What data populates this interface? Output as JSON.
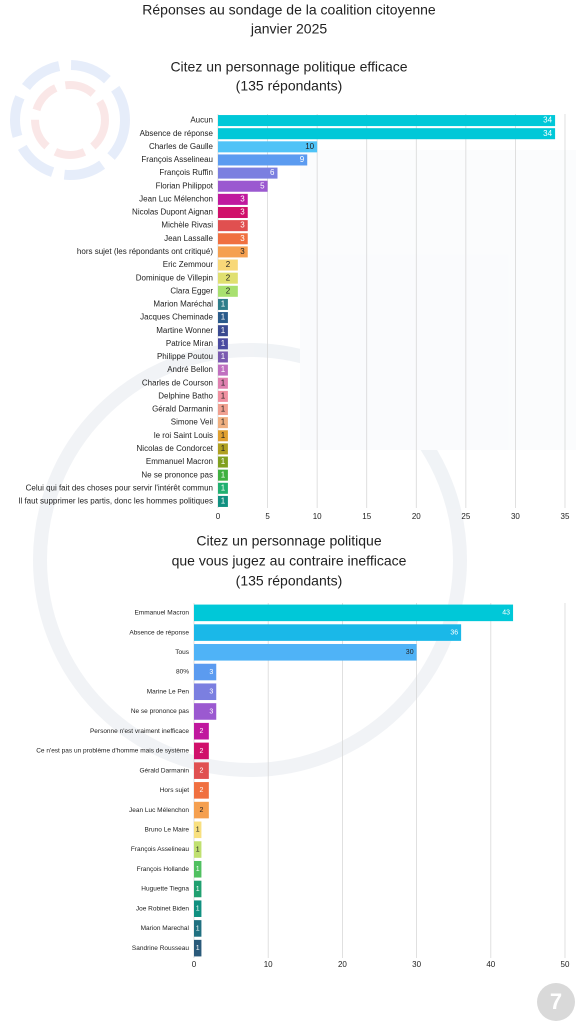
{
  "header": {
    "title": "Réponses au sondage de la coalition citoyenne",
    "date": "janvier 2025"
  },
  "page_number": "7",
  "chart_data": [
    {
      "type": "bar",
      "orientation": "horizontal",
      "title_lines": [
        "Citez un personnage politique efficace",
        "(135 répondants)"
      ],
      "categories": [
        "Aucun",
        "Absence de réponse",
        "Charles de Gaulle",
        "François Asselineau",
        "François Ruffin",
        "Florian Philippot",
        "Jean Luc Mélenchon",
        "Nicolas Dupont Aignan",
        "Michèle Rivasi",
        "Jean Lassalle",
        "hors sujet (les répondants ont critiqué)",
        "Eric Zemmour",
        "Dominique de Villepin",
        "Clara Egger",
        "Marion Maréchal",
        "Jacques Cheminade",
        "Martine Wonner",
        "Patrice Miran",
        "Philippe Poutou",
        "André Bellon",
        "Charles de Courson",
        "Delphine Batho",
        "Gérald Darmanin",
        "Simone Veil",
        "le roi Saint Louis",
        "Nicolas de Condorcet",
        "Emmanuel Macron",
        "Ne se prononce pas",
        "Celui qui fait des choses pour servir l'intérêt commun",
        "Il faut supprimer les partis, donc les hommes politiques"
      ],
      "values": [
        34,
        34,
        10,
        9,
        6,
        5,
        3,
        3,
        3,
        3,
        3,
        2,
        2,
        2,
        1,
        1,
        1,
        1,
        1,
        1,
        1,
        1,
        1,
        1,
        1,
        1,
        1,
        1,
        1,
        1
      ],
      "colors": [
        "#00c8d8",
        "#00c8d8",
        "#4fc3f7",
        "#5b9bf0",
        "#7b7fe0",
        "#9b59d0",
        "#c0189e",
        "#d0106a",
        "#e05050",
        "#f07040",
        "#f5a050",
        "#f8d878",
        "#e0e070",
        "#a8e070",
        "#2e7d8a",
        "#2a5a8a",
        "#3a4a90",
        "#4a4aa0",
        "#7a5ab0",
        "#c070c0",
        "#e080b0",
        "#f090a0",
        "#f0a090",
        "#f0b080",
        "#e0a030",
        "#b0a020",
        "#80a020",
        "#40b040",
        "#20b070",
        "#109080"
      ],
      "xlim": [
        0,
        35
      ],
      "xticks": [
        0,
        5,
        10,
        15,
        20,
        25,
        30,
        35
      ],
      "grid": true
    },
    {
      "type": "bar",
      "orientation": "horizontal",
      "title_lines": [
        "Citez un personnage politique",
        "que vous jugez au contraire inefficace",
        "(135 répondants)"
      ],
      "categories": [
        "Emmanuel Macron",
        "Absence de réponse",
        "Tous",
        "80%",
        "Marine Le Pen",
        "Ne se prononce pas",
        "Personne n'est vraiment inefficace",
        "Ce n'est pas un problème d'homme mais de système",
        "Gérald Darmanin",
        "Hors sujet",
        "Jean Luc Mélenchon",
        "Bruno Le Maire",
        "François Asselineau",
        "François Hollande",
        "Huguette Tiegna",
        "Joe Robinet Biden",
        "Marion Marechal",
        "Sandrine Rousseau"
      ],
      "values": [
        43,
        36,
        30,
        3,
        3,
        3,
        2,
        2,
        2,
        2,
        2,
        1,
        1,
        1,
        1,
        1,
        1,
        1
      ],
      "colors": [
        "#00c8d8",
        "#1ab8e8",
        "#4fb3f7",
        "#5b9bf0",
        "#7b7fe0",
        "#9b59d0",
        "#c0189e",
        "#d0106a",
        "#e05050",
        "#f07040",
        "#f5a050",
        "#f8e080",
        "#c0e070",
        "#50c060",
        "#20a070",
        "#109080",
        "#207080",
        "#2a5a7a"
      ],
      "xlim": [
        0,
        50
      ],
      "xticks": [
        0,
        10,
        20,
        30,
        40,
        50
      ],
      "grid": true
    }
  ]
}
